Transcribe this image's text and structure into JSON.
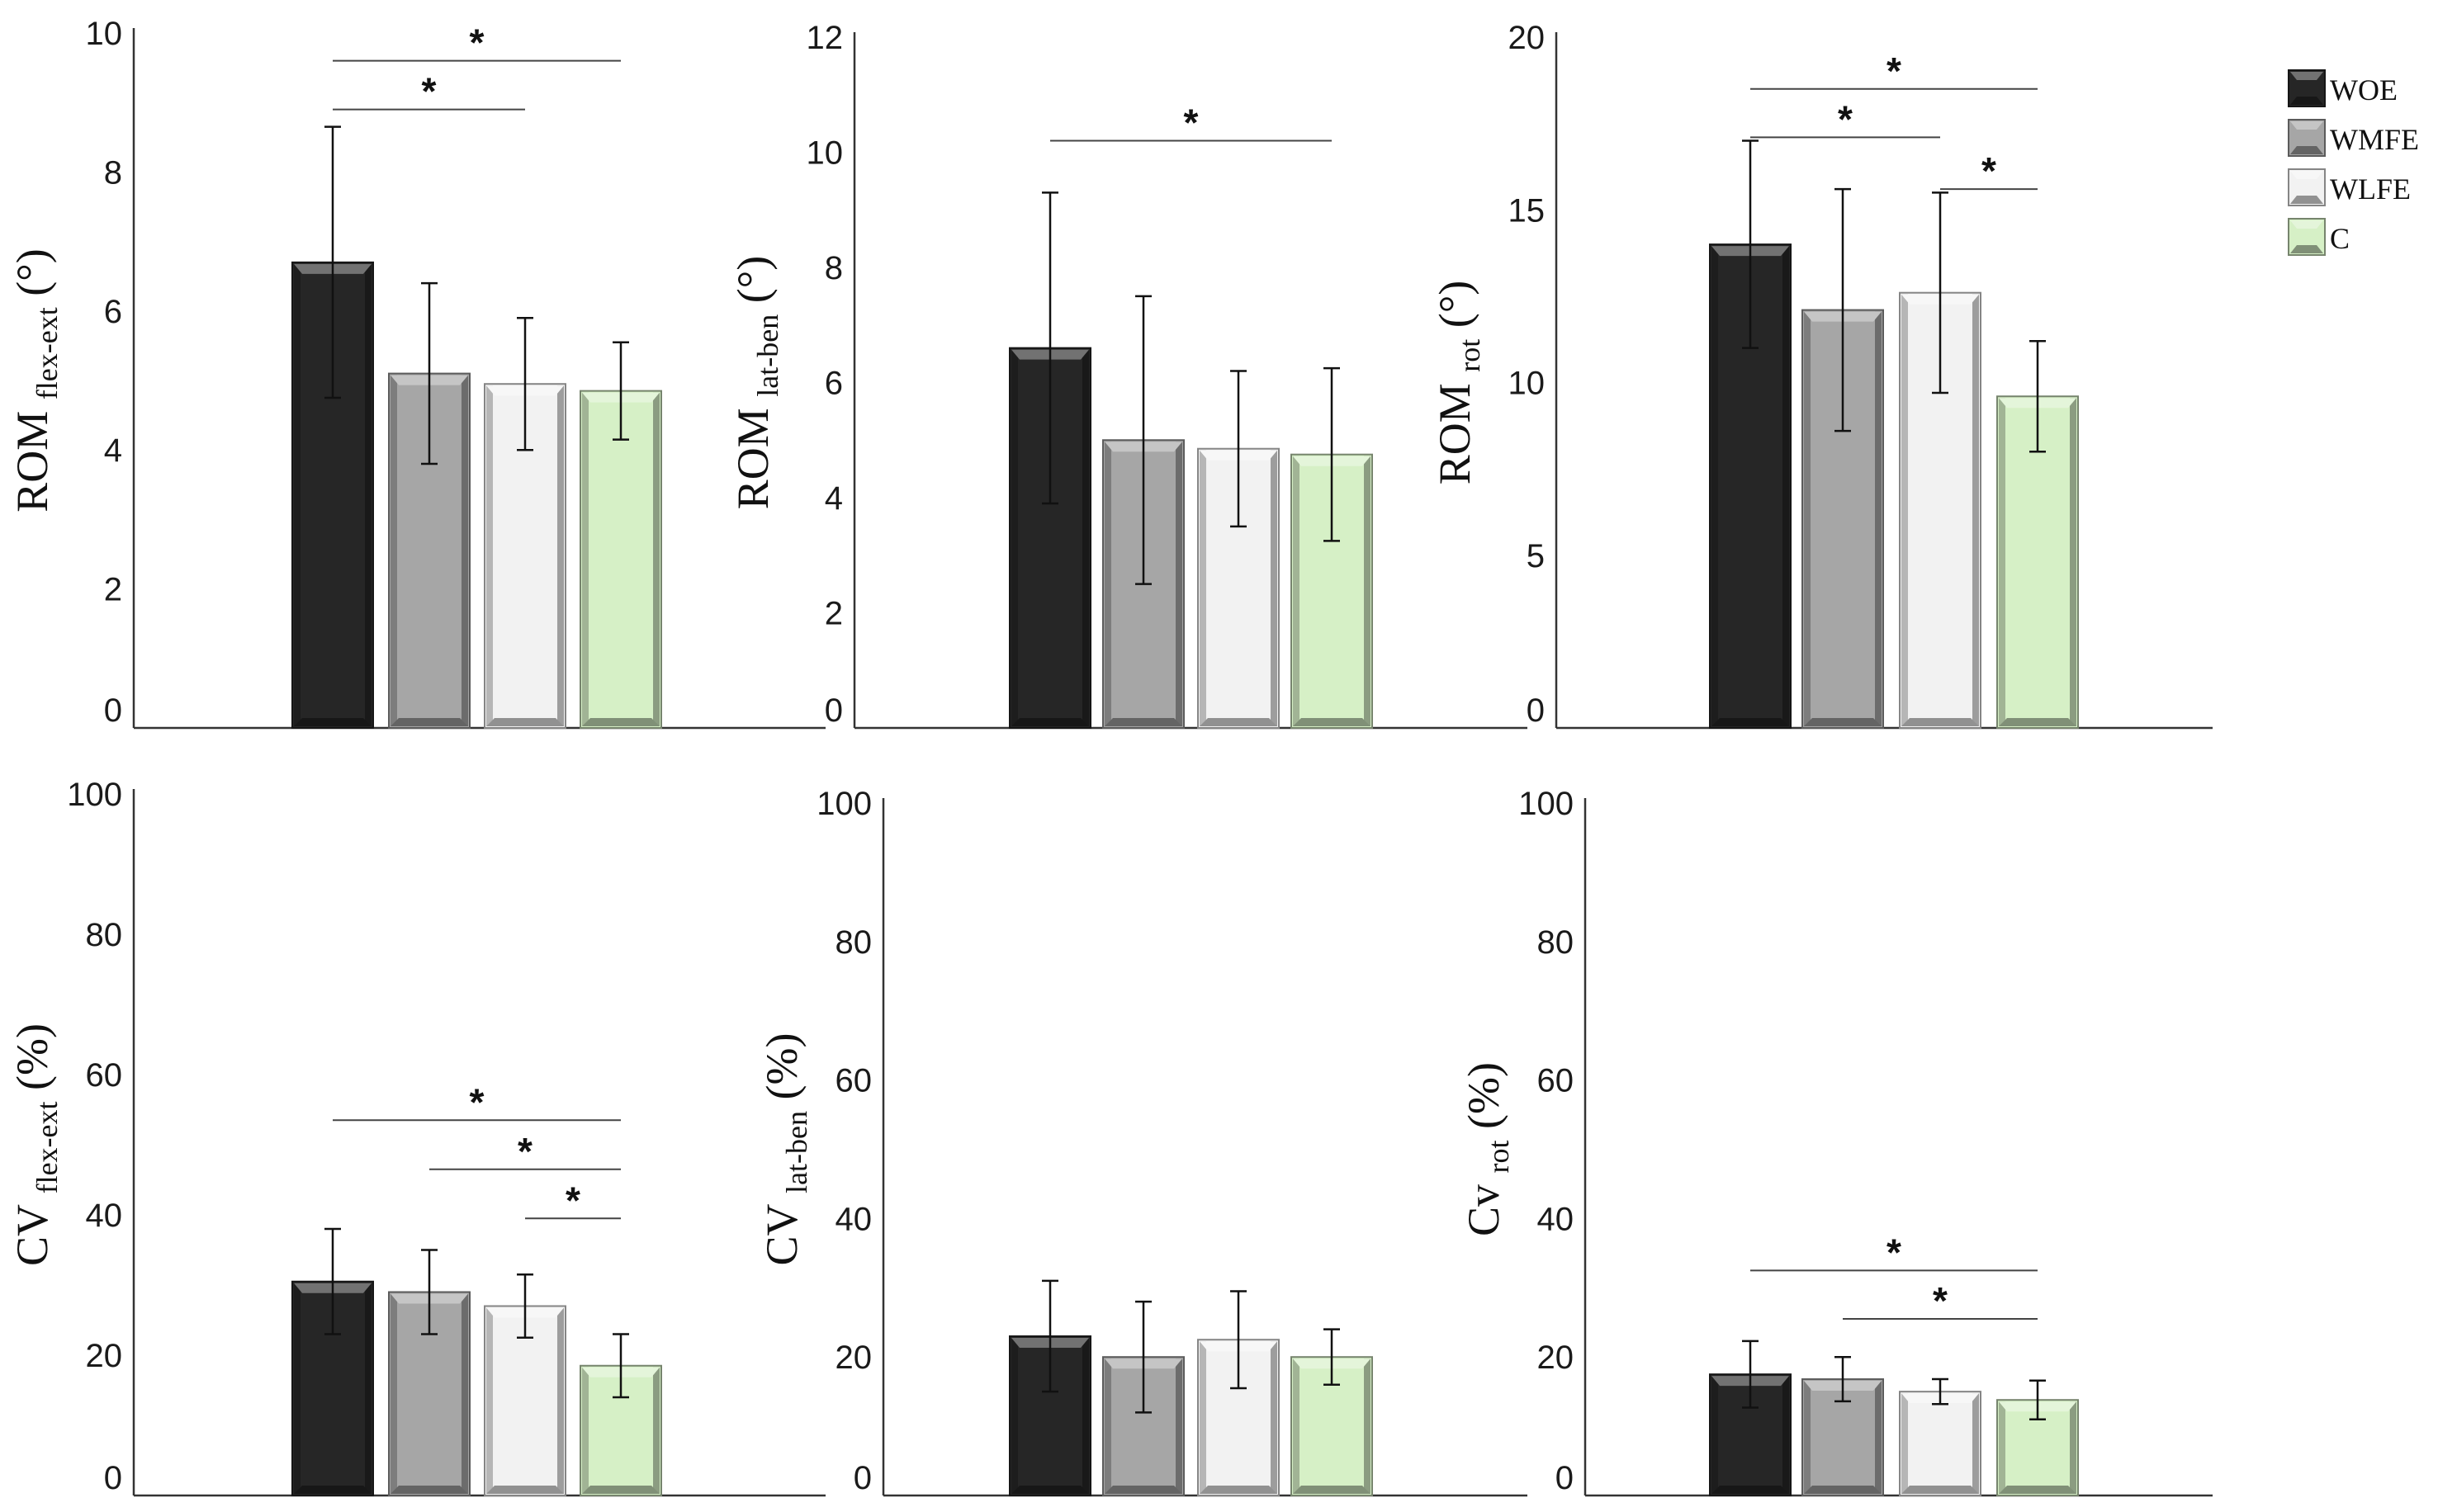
{
  "colors": {
    "WOE": "#262626",
    "WMFE": "#a6a6a6",
    "WLFE": "#f2f2f2",
    "C": "#d6f0c6",
    "axis": "#333333",
    "errorbar": "#111111"
  },
  "legend": {
    "placement": "top-right",
    "items": [
      {
        "label": "WOE",
        "color_key": "WOE"
      },
      {
        "label": "WMFE",
        "color_key": "WMFE"
      },
      {
        "label": "WLFE",
        "color_key": "WLFE"
      },
      {
        "label": "C",
        "color_key": "C"
      }
    ]
  },
  "chart_data": [
    {
      "type": "bar",
      "ylabel": {
        "main": "ROM",
        "sub": "flex-ext",
        "unit": "(°)"
      },
      "ylim": [
        0,
        10
      ],
      "yticks": [
        "0",
        "2",
        "4",
        "6",
        "8",
        "10"
      ],
      "ytick_values": [
        0,
        2,
        4,
        6,
        8,
        10
      ],
      "categories": [
        "WOE",
        "WMFE",
        "WLFE",
        "C"
      ],
      "values": [
        6.7,
        5.1,
        4.95,
        4.85
      ],
      "errors": [
        1.95,
        1.3,
        0.95,
        0.7
      ],
      "significance": [
        {
          "from": 0,
          "to": 3,
          "y": 9.6,
          "label": "*"
        },
        {
          "from": 0,
          "to": 2,
          "y": 8.9,
          "label": "*"
        }
      ]
    },
    {
      "type": "bar",
      "ylabel": {
        "main": "ROM",
        "sub": "lat-ben",
        "unit": "(°)"
      },
      "ylim": [
        0,
        12
      ],
      "yticks": [
        "0",
        "2",
        "4",
        "6",
        "8",
        "10",
        "12"
      ],
      "ytick_values": [
        0,
        2,
        4,
        6,
        8,
        10,
        12
      ],
      "categories": [
        "WOE",
        "WMFE",
        "WLFE",
        "C"
      ],
      "values": [
        6.6,
        5.0,
        4.85,
        4.75
      ],
      "errors": [
        2.7,
        2.5,
        1.35,
        1.5
      ],
      "significance": [
        {
          "from": 0,
          "to": 3,
          "y": 10.2,
          "label": "*"
        }
      ]
    },
    {
      "type": "bar",
      "ylabel": {
        "main": "ROM",
        "sub": "rot",
        "unit": "(°)"
      },
      "ylim": [
        0,
        20
      ],
      "yticks": [
        "0",
        "5",
        "10",
        "15",
        "20"
      ],
      "ytick_values": [
        0,
        5,
        10,
        15,
        20
      ],
      "categories": [
        "WOE",
        "WMFE",
        "WLFE",
        "C"
      ],
      "values": [
        14.0,
        12.1,
        12.6,
        9.6
      ],
      "errors": [
        3.0,
        3.5,
        2.9,
        1.6
      ],
      "significance": [
        {
          "from": 0,
          "to": 3,
          "y": 18.5,
          "label": "*"
        },
        {
          "from": 0,
          "to": 2,
          "y": 17.1,
          "label": "*"
        },
        {
          "from": 2,
          "to": 3,
          "y": 15.6,
          "label": "*"
        }
      ]
    },
    {
      "type": "bar",
      "ylabel": {
        "main": "CV",
        "sub": "flex-ext",
        "unit": "(%)"
      },
      "ylim": [
        0,
        100
      ],
      "yticks": [
        "0",
        "20",
        "40",
        "60",
        "80",
        "100"
      ],
      "ytick_values": [
        0,
        20,
        40,
        60,
        80,
        100
      ],
      "categories": [
        "WOE",
        "WMFE",
        "WLFE",
        "C"
      ],
      "values": [
        30.5,
        29.0,
        27.0,
        18.5
      ],
      "errors": [
        7.5,
        6.0,
        4.5,
        4.5
      ],
      "significance": [
        {
          "from": 0,
          "to": 3,
          "y": 53.5,
          "label": "*"
        },
        {
          "from": 1,
          "to": 3,
          "y": 46.5,
          "label": "*"
        },
        {
          "from": 2,
          "to": 3,
          "y": 39.5,
          "label": "*"
        }
      ]
    },
    {
      "type": "bar",
      "ylabel": {
        "main": "CV",
        "sub": "lat-ben",
        "unit": "(%)"
      },
      "ylim": [
        0,
        100
      ],
      "yticks": [
        "0",
        "20",
        "40",
        "60",
        "80",
        "100"
      ],
      "ytick_values": [
        0,
        20,
        40,
        60,
        80,
        100
      ],
      "categories": [
        "WOE",
        "WMFE",
        "WLFE",
        "C"
      ],
      "values": [
        23.0,
        20.0,
        22.5,
        20.0
      ],
      "errors": [
        8.0,
        8.0,
        7.0,
        4.0
      ],
      "significance": []
    },
    {
      "type": "bar",
      "ylabel": {
        "main": "Cv",
        "sub": "rot",
        "unit": "(%)"
      },
      "ylim": [
        0,
        100
      ],
      "yticks": [
        "0",
        "20",
        "40",
        "60",
        "80",
        "100"
      ],
      "ytick_values": [
        0,
        20,
        40,
        60,
        80,
        100
      ],
      "categories": [
        "WOE",
        "WMFE",
        "WLFE",
        "C"
      ],
      "values": [
        17.5,
        16.8,
        15.0,
        13.8
      ],
      "errors": [
        4.8,
        3.2,
        1.8,
        2.8
      ],
      "significance": [
        {
          "from": 0,
          "to": 3,
          "y": 32.5,
          "label": "*"
        },
        {
          "from": 1,
          "to": 3,
          "y": 25.5,
          "label": "*"
        }
      ]
    }
  ]
}
